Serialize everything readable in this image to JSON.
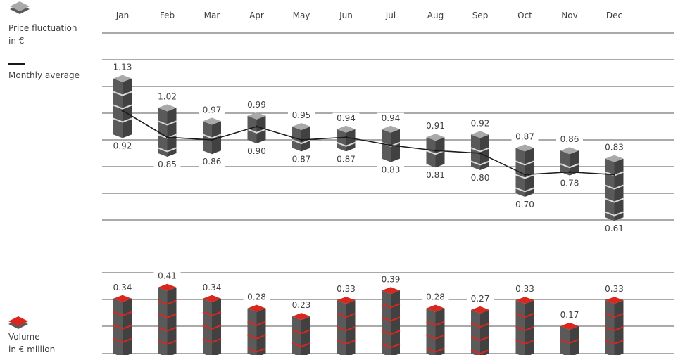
{
  "chart_data": [
    {
      "type": "range",
      "categories": [
        "Jan",
        "Feb",
        "Mar",
        "Apr",
        "May",
        "Jun",
        "Jul",
        "Aug",
        "Sep",
        "Oct",
        "Nov",
        "Dec"
      ],
      "high": [
        1.13,
        1.02,
        0.97,
        0.99,
        0.95,
        0.94,
        0.94,
        0.91,
        0.92,
        0.87,
        0.86,
        0.83
      ],
      "low": [
        0.92,
        0.85,
        0.86,
        0.9,
        0.87,
        0.87,
        0.83,
        0.81,
        0.8,
        0.7,
        0.78,
        0.61
      ],
      "high_labels": [
        "1.13",
        "1.02",
        "0.97",
        "0.99",
        "0.95",
        "0.94",
        "0.94",
        "0.91",
        "0.92",
        "0.87",
        "0.86",
        "0.83"
      ],
      "low_labels": [
        "0.92",
        "0.85",
        "0.86",
        "0.90",
        "0.87",
        "0.87",
        "0.83",
        "0.81",
        "0.80",
        "0.70",
        "0.78",
        "0.61"
      ],
      "average": [
        1.01,
        0.91,
        0.9,
        0.95,
        0.9,
        0.91,
        0.88,
        0.86,
        0.85,
        0.77,
        0.78,
        0.77
      ],
      "ylim": [
        0.6,
        1.2
      ],
      "legend": [
        {
          "name": "Price fluctuation",
          "sub": "in €",
          "color": "#8c8c8c"
        },
        {
          "name": "Monthly average",
          "color": "#1a1a1a"
        }
      ]
    },
    {
      "type": "bar",
      "categories": [
        "Jan",
        "Feb",
        "Mar",
        "Apr",
        "May",
        "Jun",
        "Jul",
        "Aug",
        "Sep",
        "Oct",
        "Nov",
        "Dec"
      ],
      "values": [
        0.34,
        0.41,
        0.34,
        0.28,
        0.23,
        0.33,
        0.39,
        0.28,
        0.27,
        0.33,
        0.17,
        0.33
      ],
      "labels": [
        "0.34",
        "0.41",
        "0.34",
        "0.28",
        "0.23",
        "0.33",
        "0.39",
        "0.28",
        "0.27",
        "0.33",
        "0.17",
        "0.33"
      ],
      "ylim": [
        0,
        0.5
      ],
      "legend": {
        "name": "Volume",
        "sub": "in € million",
        "color": "#d9271e"
      }
    }
  ],
  "colors": {
    "accent_red": "#d9271e",
    "grey_dark": "#5a5a5a",
    "grey_light": "#a9a9a9",
    "line": "#1a1a1a"
  }
}
